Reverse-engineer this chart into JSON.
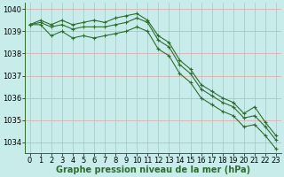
{
  "xlabel": "Graphe pression niveau de la mer (hPa)",
  "background_color": "#c8ece9",
  "plot_bg_color": "#c8ece9",
  "grid_color_h": "#e8a0a0",
  "grid_color_v": "#a0c8c8",
  "line_color": "#2d6e2d",
  "hours": [
    0,
    1,
    2,
    3,
    4,
    5,
    6,
    7,
    8,
    9,
    10,
    11,
    12,
    13,
    14,
    15,
    16,
    17,
    18,
    19,
    20,
    21,
    22,
    23
  ],
  "line1": [
    1039.3,
    1039.5,
    1039.3,
    1039.5,
    1039.3,
    1039.4,
    1039.5,
    1039.4,
    1039.6,
    1039.7,
    1039.8,
    1039.5,
    1038.8,
    1038.5,
    1037.7,
    1037.3,
    1036.6,
    1036.3,
    1036.0,
    1035.8,
    1035.3,
    1035.6,
    1034.9,
    1034.3
  ],
  "line2": [
    1039.3,
    1039.4,
    1039.2,
    1039.3,
    1039.1,
    1039.2,
    1039.2,
    1039.2,
    1039.3,
    1039.4,
    1039.6,
    1039.4,
    1038.6,
    1038.3,
    1037.5,
    1037.1,
    1036.4,
    1036.1,
    1035.8,
    1035.6,
    1035.1,
    1035.2,
    1034.7,
    1034.1
  ],
  "line3": [
    1039.3,
    1039.3,
    1038.8,
    1039.0,
    1038.7,
    1038.8,
    1038.7,
    1038.8,
    1038.9,
    1039.0,
    1039.2,
    1039.0,
    1038.2,
    1037.9,
    1037.1,
    1036.7,
    1036.0,
    1035.7,
    1035.4,
    1035.2,
    1034.7,
    1034.8,
    1034.3,
    1033.7
  ],
  "ylim": [
    1033.5,
    1040.3
  ],
  "yticks": [
    1034,
    1035,
    1036,
    1037,
    1038,
    1039,
    1040
  ],
  "marker": "+",
  "marker_size": 3.5,
  "linewidth": 0.8,
  "xlabel_fontsize": 7,
  "tick_fontsize": 6,
  "fig_width": 3.2,
  "fig_height": 2.0,
  "dpi": 100
}
